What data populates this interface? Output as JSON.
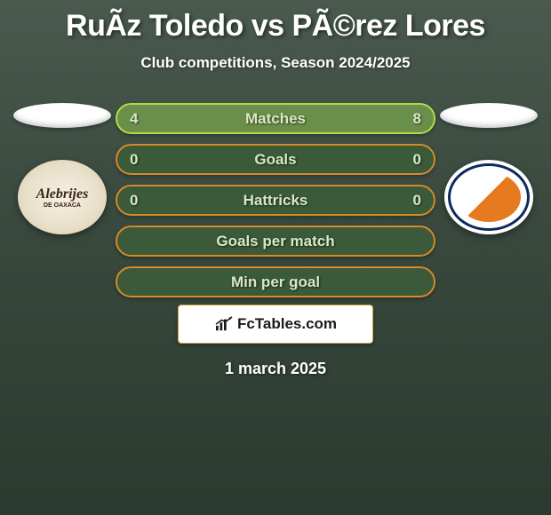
{
  "title": "RuÃ­z Toledo vs PÃ©rez Lores",
  "subtitle": "Club competitions, Season 2024/2025",
  "date": "1 march 2025",
  "brand_text": "FcTables.com",
  "logos": {
    "left_label": "Alebrijes",
    "left_sublabel": "DE OAXACA"
  },
  "stat_bars": [
    {
      "left": "4",
      "label": "Matches",
      "right": "8",
      "bg": "#6a8f4a",
      "border": "#b5d84a",
      "text": "#d9e8c4"
    },
    {
      "left": "0",
      "label": "Goals",
      "right": "0",
      "bg": "#3a5a3a",
      "border": "#d68a28",
      "text": "#d9e8c4"
    },
    {
      "left": "0",
      "label": "Hattricks",
      "right": "0",
      "bg": "#3a5a3a",
      "border": "#d68a28",
      "text": "#d9e8c4"
    },
    {
      "left": "",
      "label": "Goals per match",
      "right": "",
      "bg": "#3a5a3a",
      "border": "#d68a28",
      "text": "#d9e8c4"
    },
    {
      "left": "",
      "label": "Min per goal",
      "right": "",
      "bg": "#3a5a3a",
      "border": "#d68a28",
      "text": "#d9e8c4"
    }
  ]
}
